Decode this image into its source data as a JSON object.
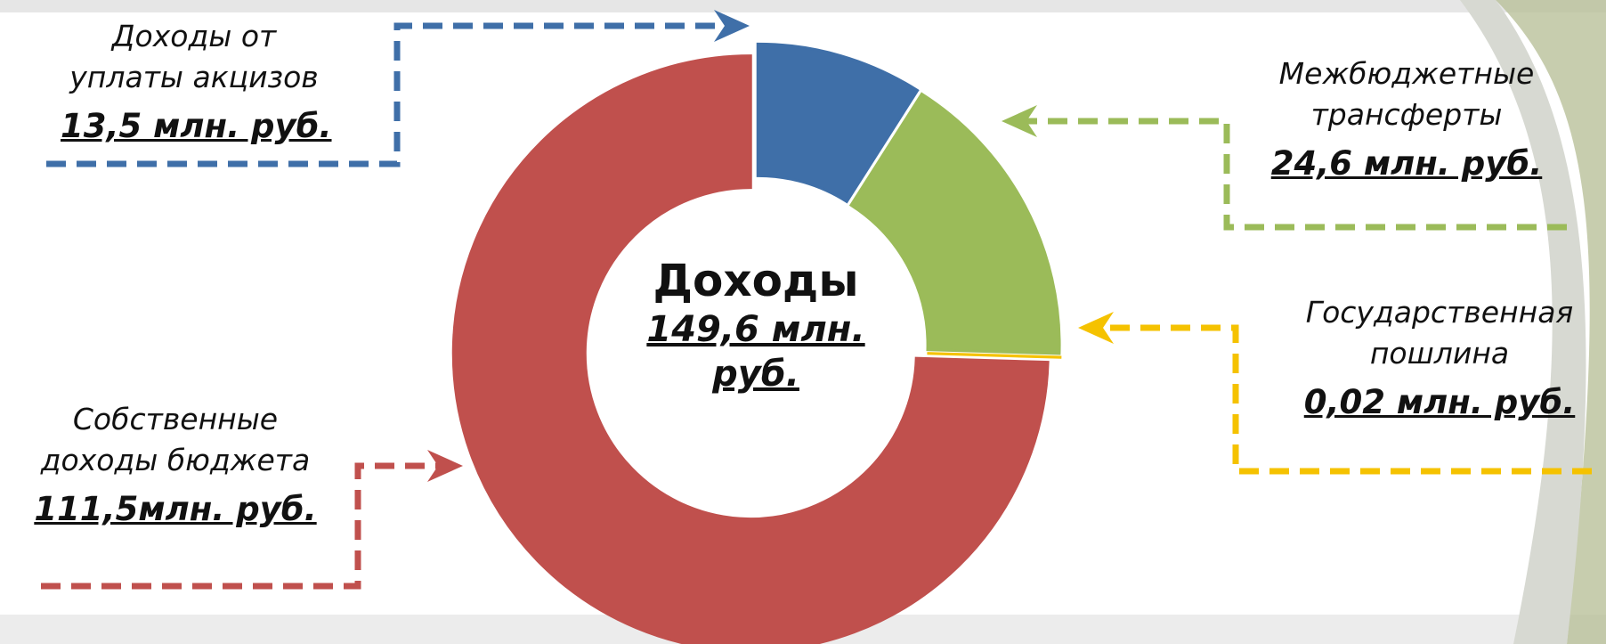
{
  "chart_data": {
    "type": "donut",
    "center_title": "Доходы",
    "center_label": "149,6 млн. руб.",
    "categories": [
      "Доходы от уплаты акцизов",
      "Межбюджетные трансферты",
      "Государственная пошлина",
      "Собственные доходы бюджета"
    ],
    "values": [
      13.5,
      24.6,
      0.02,
      111.5
    ],
    "value_labels": [
      "13,5 млн. руб.",
      "24,6 млн. руб.",
      "0,02 млн. руб.",
      "111,5млн. руб."
    ],
    "colors": [
      "#3f6fa8",
      "#9bbb59",
      "#f5c200",
      "#c0504d"
    ]
  }
}
